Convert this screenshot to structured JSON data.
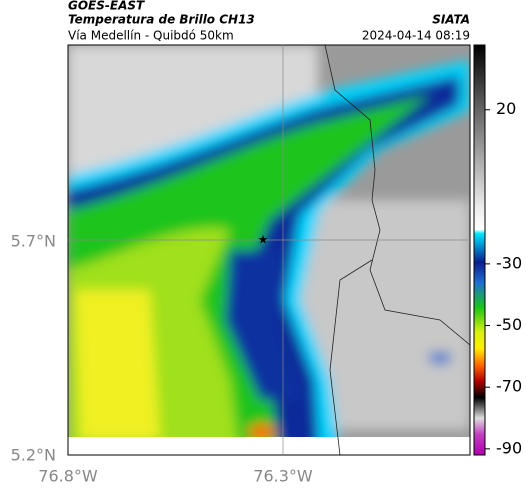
{
  "header": {
    "source": "GOES-EAST",
    "title": "Temperatura de Brillo CH13",
    "subtitle": "Vía Medellín - Quibdó 50km",
    "agency": "SIATA",
    "timestamp": "2024-04-14 08:19"
  },
  "map": {
    "lat_labels": [
      "5.7°N",
      "5.2°N"
    ],
    "lon_labels": [
      "76.8°W",
      "76.3°W"
    ]
  },
  "colorbar": {
    "lim": [
      41,
      -92
    ],
    "ticks": [
      20,
      -30,
      -50,
      -70,
      -90
    ]
  }
}
